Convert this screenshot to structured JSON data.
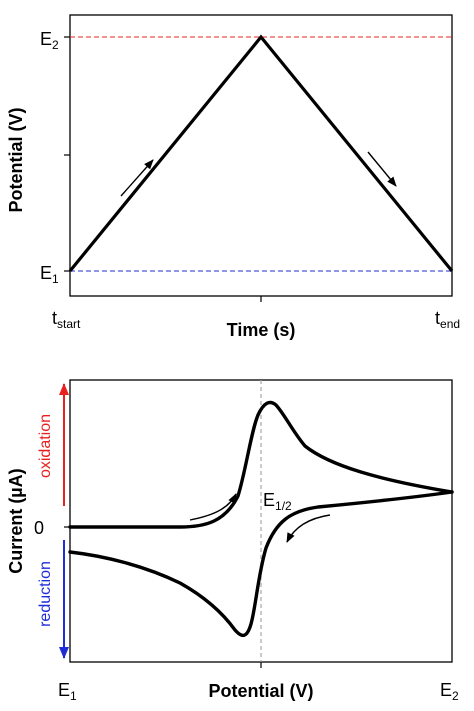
{
  "waveform_panel": {
    "y_axis_title": "Potential (V)",
    "x_axis_title": "Time (s)",
    "e2_label": {
      "main": "E",
      "sub": "2",
      "color": "#e8201e"
    },
    "e1_label": {
      "main": "E",
      "sub": "1",
      "color": "#1e2dd8"
    },
    "t_start_label": {
      "main": "t",
      "sub": "start"
    },
    "t_end_label": {
      "main": "t",
      "sub": "end"
    }
  },
  "voltammogram_panel": {
    "y_axis_title": "Current (µA)",
    "x_axis_title": "Potential (V)",
    "zero_label": "0",
    "oxidation_label": "oxidation",
    "reduction_label": "reduction",
    "oxidation_color": "#e8201e",
    "reduction_color": "#1e2dd8",
    "e_half_label": {
      "main": "E",
      "sub": "1/2",
      "color": "#a6a6a6"
    },
    "x_left_label": {
      "main": "E",
      "sub": "1",
      "color": "#1e2dd8"
    },
    "x_right_label": {
      "main": "E",
      "sub": "2",
      "color": "#e8201e"
    }
  }
}
